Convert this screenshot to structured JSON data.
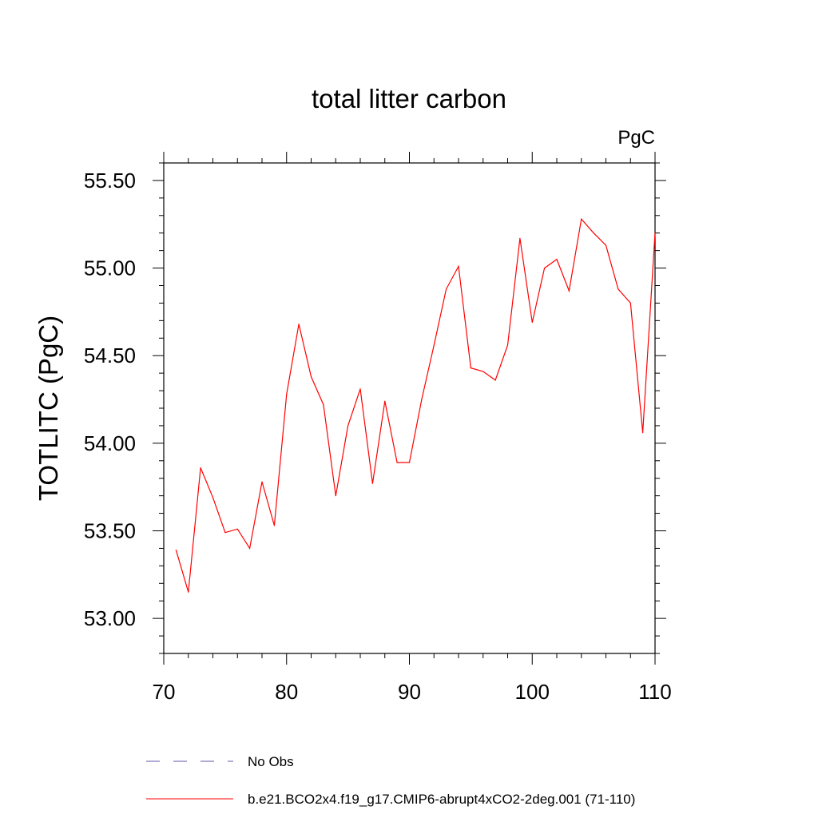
{
  "chart_data": {
    "type": "line",
    "title": "total litter carbon",
    "units": "PgC",
    "xlabel": "",
    "ylabel": "TOTLITC  (PgC)",
    "xlim": [
      70,
      110
    ],
    "ylim": [
      52.8,
      55.6
    ],
    "x_ticks": [
      70,
      80,
      90,
      100,
      110
    ],
    "x_tick_labels": [
      "70",
      "80",
      "90",
      "100",
      "110"
    ],
    "y_ticks": [
      53.0,
      53.5,
      54.0,
      54.5,
      55.0,
      55.5
    ],
    "y_tick_labels": [
      "53.00",
      "53.50",
      "54.00",
      "54.50",
      "55.00",
      "55.50"
    ],
    "series": [
      {
        "name": "b.e21.BCO2x4.f19_g17.CMIP6-abrupt4xCO2-2deg.001 (71-110)",
        "color": "#ff0000",
        "style": "solid",
        "x": [
          71,
          72,
          73,
          74,
          75,
          76,
          77,
          78,
          79,
          80,
          81,
          82,
          83,
          84,
          85,
          86,
          87,
          88,
          89,
          90,
          91,
          92,
          93,
          94,
          95,
          96,
          97,
          98,
          99,
          100,
          101,
          102,
          103,
          104,
          105,
          106,
          107,
          108,
          109,
          110
        ],
        "values": [
          53.39,
          53.15,
          53.86,
          53.69,
          53.49,
          53.51,
          53.4,
          53.78,
          53.53,
          54.28,
          54.68,
          54.38,
          54.22,
          53.7,
          54.1,
          54.31,
          53.77,
          54.24,
          53.89,
          53.89,
          54.25,
          54.56,
          54.88,
          55.01,
          54.43,
          54.41,
          54.36,
          54.56,
          55.17,
          54.69,
          55.0,
          55.05,
          54.87,
          55.28,
          55.2,
          55.13,
          54.88,
          54.8,
          54.06,
          55.2
        ]
      }
    ],
    "legend": [
      {
        "label": "No Obs",
        "color": "#6655aa",
        "style": "dashed"
      },
      {
        "label": "b.e21.BCO2x4.f19_g17.CMIP6-abrupt4xCO2-2deg.001 (71-110)",
        "color": "#ff0000",
        "style": "solid"
      }
    ]
  }
}
